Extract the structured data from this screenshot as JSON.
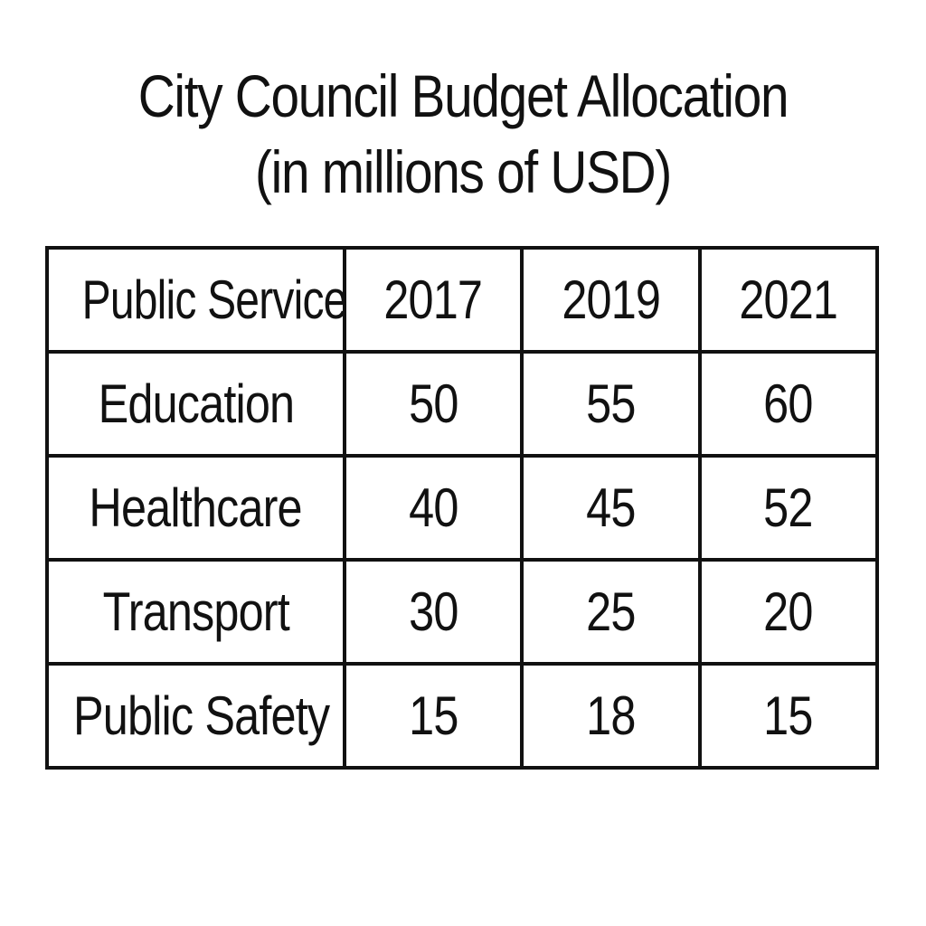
{
  "chart_data": {
    "type": "table",
    "title": "City Council Budget Allocation",
    "subtitle": "(in millions of USD)",
    "columns": [
      "Public Service",
      "2017",
      "2019",
      "2021"
    ],
    "rows": [
      {
        "label": "Education",
        "values": [
          "50",
          "55",
          "60"
        ]
      },
      {
        "label": "Healthcare",
        "values": [
          "40",
          "45",
          "52"
        ]
      },
      {
        "label": "Transport",
        "values": [
          "30",
          "25",
          "20"
        ]
      },
      {
        "label": "Public Safety",
        "values": [
          "15",
          "18",
          "15"
        ]
      }
    ]
  }
}
